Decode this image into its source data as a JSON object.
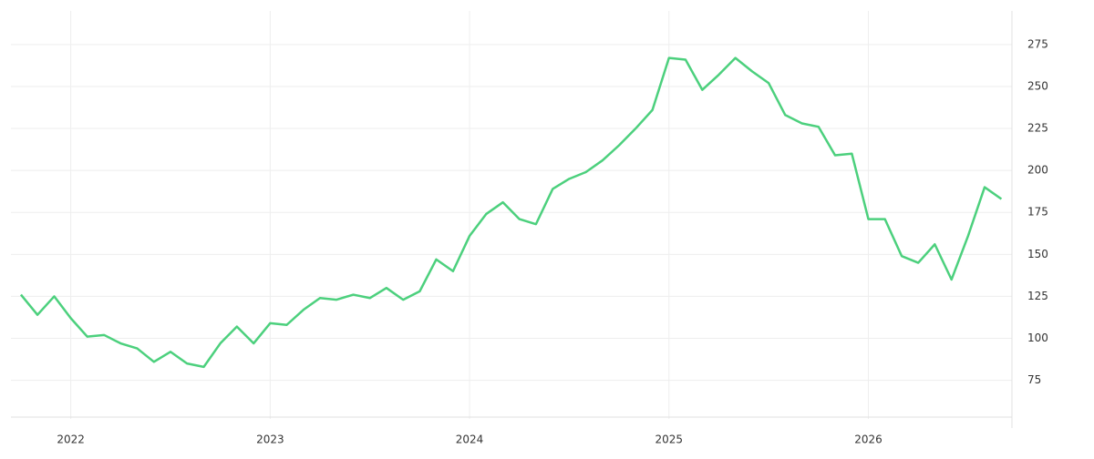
{
  "chart_data": {
    "type": "line",
    "x": [
      2021.75,
      2021.833,
      2021.917,
      2022,
      2022.083,
      2022.167,
      2022.25,
      2022.333,
      2022.417,
      2022.5,
      2022.583,
      2022.667,
      2022.75,
      2022.833,
      2022.917,
      2023,
      2023.083,
      2023.167,
      2023.25,
      2023.333,
      2023.417,
      2023.5,
      2023.583,
      2023.667,
      2023.75,
      2023.833,
      2023.917,
      2024,
      2024.083,
      2024.167,
      2024.25,
      2024.333,
      2024.417,
      2024.5,
      2024.583,
      2024.667,
      2024.75,
      2024.833,
      2024.917,
      2025,
      2025.083,
      2025.167,
      2025.25,
      2025.333,
      2025.417,
      2025.5,
      2025.583,
      2025.667,
      2025.75,
      2025.833,
      2025.917,
      2026,
      2026.083,
      2026.167,
      2026.25,
      2026.333,
      2026.417,
      2026.5,
      2026.583,
      2026.667
    ],
    "series": [
      {
        "color": "#4cd07d",
        "values": [
          126,
          114,
          125,
          112,
          101,
          102,
          97,
          94,
          86,
          92,
          85,
          83,
          97,
          107,
          97,
          109,
          108,
          117,
          124,
          123,
          126,
          124,
          130,
          123,
          128,
          147,
          140,
          161,
          174,
          181,
          171,
          168,
          189,
          195,
          199,
          206,
          215,
          225,
          236,
          267,
          266,
          248,
          257,
          267,
          259,
          252,
          233,
          228,
          226,
          209,
          210,
          171,
          171,
          149,
          145,
          156,
          135,
          161,
          190,
          183
        ]
      }
    ],
    "xlim": [
      2021.7,
      2026.72
    ],
    "xticks": [
      2022,
      2023,
      2024,
      2025,
      2026
    ],
    "ylim": [
      52,
      295
    ],
    "yticks": [
      75,
      100,
      125,
      150,
      175,
      200,
      225,
      250,
      275
    ],
    "grid": true
  }
}
